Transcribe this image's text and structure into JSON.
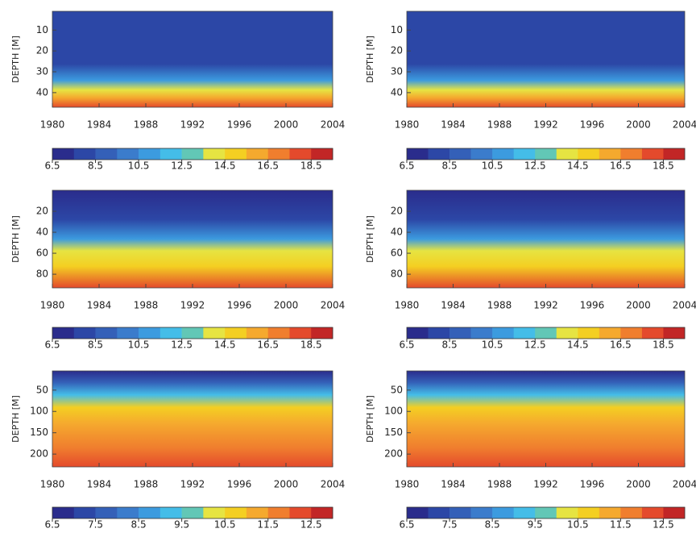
{
  "chart_data": [
    {
      "type": "contour",
      "ylabel": "DEPTH [M]",
      "xlim": [
        1980,
        2004
      ],
      "xticks": [
        1980,
        1984,
        1988,
        1992,
        1996,
        2000,
        2004
      ],
      "ylim": [
        1,
        47
      ],
      "yticks": [
        10,
        20,
        30,
        40
      ],
      "colorbar": {
        "lim": [
          6.5,
          19.5
        ],
        "ticks": [
          6.5,
          8.5,
          10.5,
          12.5,
          14.5,
          16.5,
          18.5
        ],
        "colors": [
          "#2a2c8c",
          "#2c47a6",
          "#3460b8",
          "#3b7ccc",
          "#3c9bdf",
          "#44bde8",
          "#62c7b6",
          "#e6e442",
          "#f4cf22",
          "#f5a92e",
          "#f07e2e",
          "#e44a2c",
          "#c22626"
        ]
      }
    },
    {
      "type": "contour",
      "ylabel": "DEPTH [M]",
      "xlim": [
        1980,
        2004
      ],
      "xticks": [
        1980,
        1984,
        1988,
        1992,
        1996,
        2000,
        2004
      ],
      "ylim": [
        1,
        47
      ],
      "yticks": [
        10,
        20,
        30,
        40
      ],
      "colorbar": {
        "lim": [
          6.5,
          19.5
        ],
        "ticks": [
          6.5,
          8.5,
          10.5,
          12.5,
          14.5,
          16.5,
          18.5
        ],
        "colors": [
          "#2a2c8c",
          "#2c47a6",
          "#3460b8",
          "#3b7ccc",
          "#3c9bdf",
          "#44bde8",
          "#62c7b6",
          "#e6e442",
          "#f4cf22",
          "#f5a92e",
          "#f07e2e",
          "#e44a2c",
          "#c22626"
        ]
      }
    },
    {
      "type": "contour",
      "ylabel": "DEPTH [M]",
      "xlim": [
        1980,
        2004
      ],
      "xticks": [
        1980,
        1984,
        1988,
        1992,
        1996,
        2000,
        2004
      ],
      "ylim": [
        0,
        93
      ],
      "yticks": [
        20,
        40,
        60,
        80
      ],
      "colorbar": {
        "lim": [
          6.5,
          19.5
        ],
        "ticks": [
          6.5,
          8.5,
          10.5,
          12.5,
          14.5,
          16.5,
          18.5
        ],
        "colors": [
          "#2a2c8c",
          "#2c47a6",
          "#3460b8",
          "#3b7ccc",
          "#3c9bdf",
          "#44bde8",
          "#62c7b6",
          "#e6e442",
          "#f4cf22",
          "#f5a92e",
          "#f07e2e",
          "#e44a2c",
          "#c22626"
        ]
      }
    },
    {
      "type": "contour",
      "ylabel": "DEPTH [M]",
      "xlim": [
        1980,
        2004
      ],
      "xticks": [
        1980,
        1984,
        1988,
        1992,
        1996,
        2000,
        2004
      ],
      "ylim": [
        0,
        93
      ],
      "yticks": [
        20,
        40,
        60,
        80
      ],
      "colorbar": {
        "lim": [
          6.5,
          19.5
        ],
        "ticks": [
          6.5,
          8.5,
          10.5,
          12.5,
          14.5,
          16.5,
          18.5
        ],
        "colors": [
          "#2a2c8c",
          "#2c47a6",
          "#3460b8",
          "#3b7ccc",
          "#3c9bdf",
          "#44bde8",
          "#62c7b6",
          "#e6e442",
          "#f4cf22",
          "#f5a92e",
          "#f07e2e",
          "#e44a2c",
          "#c22626"
        ]
      }
    },
    {
      "type": "contour",
      "ylabel": "DEPTH [M]",
      "xlim": [
        1980,
        2004
      ],
      "xticks": [
        1980,
        1984,
        1988,
        1992,
        1996,
        2000,
        2004
      ],
      "ylim": [
        5,
        230
      ],
      "yticks": [
        50,
        100,
        150,
        200
      ],
      "colorbar": {
        "lim": [
          6.5,
          13
        ],
        "ticks": [
          6.5,
          7.5,
          8.5,
          9.5,
          10.5,
          11.5,
          12.5
        ],
        "colors": [
          "#2a2c8c",
          "#2c47a6",
          "#3460b8",
          "#3b7ccc",
          "#3c9bdf",
          "#44bde8",
          "#62c7b6",
          "#e6e442",
          "#f4cf22",
          "#f5a92e",
          "#f07e2e",
          "#e44a2c",
          "#c22626"
        ]
      }
    },
    {
      "type": "contour",
      "ylabel": "DEPTH [M]",
      "xlim": [
        1980,
        2004
      ],
      "xticks": [
        1980,
        1984,
        1988,
        1992,
        1996,
        2000,
        2004
      ],
      "ylim": [
        5,
        230
      ],
      "yticks": [
        50,
        100,
        150,
        200
      ],
      "colorbar": {
        "lim": [
          6.5,
          13
        ],
        "ticks": [
          6.5,
          7.5,
          8.5,
          9.5,
          10.5,
          11.5,
          12.5
        ],
        "colors": [
          "#2a2c8c",
          "#2c47a6",
          "#3460b8",
          "#3b7ccc",
          "#3c9bdf",
          "#44bde8",
          "#62c7b6",
          "#e6e442",
          "#f4cf22",
          "#f5a92e",
          "#f07e2e",
          "#e44a2c",
          "#c22626"
        ]
      }
    }
  ]
}
